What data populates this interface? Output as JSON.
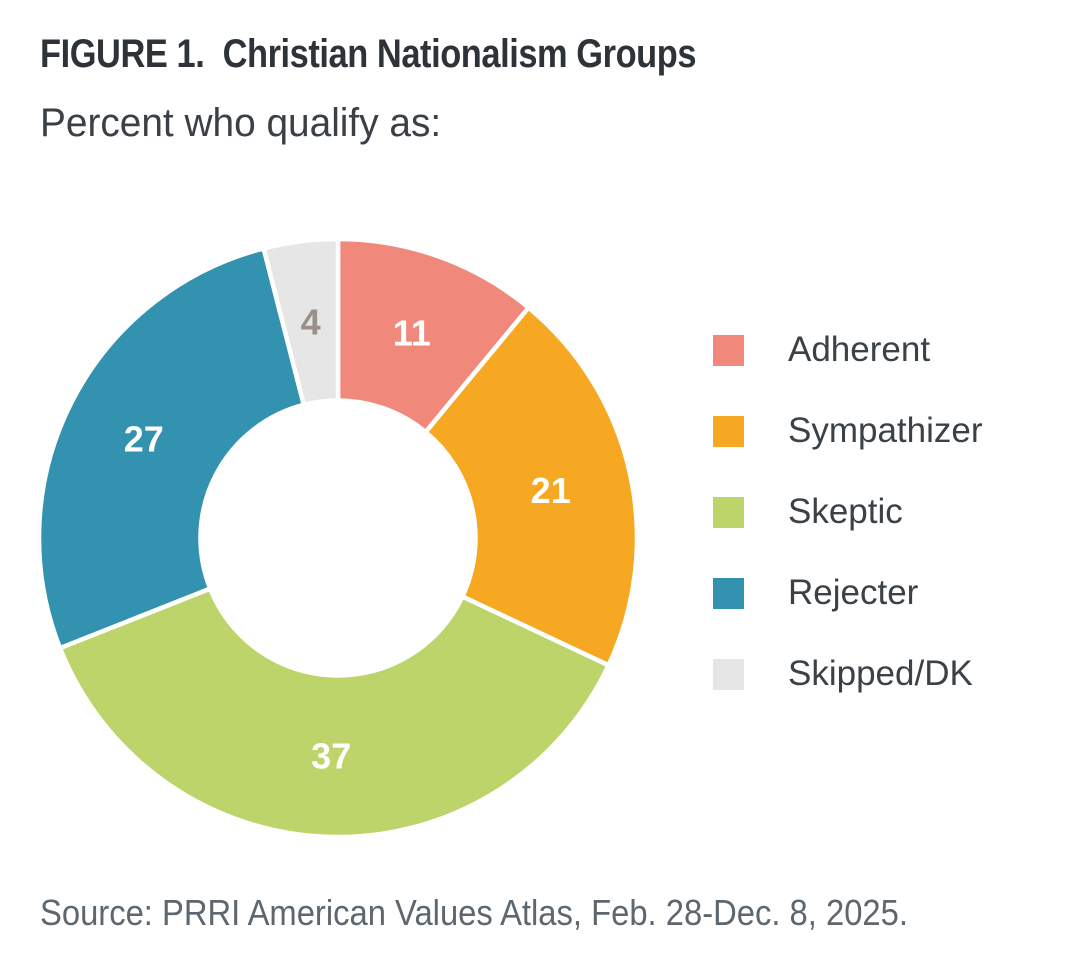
{
  "figure": {
    "title": "FIGURE 1.  Christian Nationalism Groups",
    "subtitle": "Percent who qualify as:",
    "source": "Source: PRRI American Values Atlas, Feb. 28-Dec. 8, 2025."
  },
  "chart_data": {
    "type": "pie",
    "subtype": "donut",
    "title": "FIGURE 1.  Christian Nationalism Groups",
    "subtitle": "Percent who qualify as:",
    "categories": [
      "Adherent",
      "Sympathizer",
      "Skeptic",
      "Rejecter",
      "Skipped/DK"
    ],
    "values": [
      11,
      21,
      37,
      27,
      4
    ],
    "unit": "percent",
    "colors": [
      "#F0897B",
      "#F7A823",
      "#BCD46A",
      "#3292AF",
      "#E6E6E6"
    ],
    "label_colors": [
      "#FFFFFF",
      "#FFFFFF",
      "#FFFFFF",
      "#FFFFFF",
      "#9A9089"
    ],
    "start_angle_deg": 0,
    "direction": "clockwise",
    "inner_radius_ratio": 0.45,
    "grid": false,
    "legend_position": "right",
    "source": "Source: PRRI American Values Atlas, Feb. 28-Dec. 8, 2025."
  }
}
